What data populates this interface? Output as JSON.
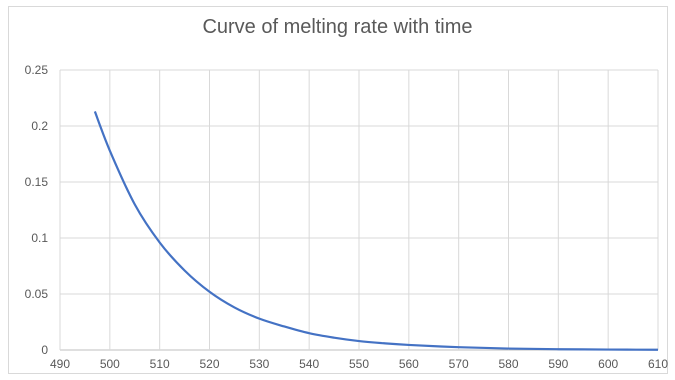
{
  "chart_data": {
    "type": "line",
    "title": "Curve of melting rate with time",
    "xlabel": "",
    "ylabel": "",
    "xlim": [
      490,
      610
    ],
    "ylim": [
      0,
      0.25
    ],
    "x_ticks": [
      490,
      500,
      510,
      520,
      530,
      540,
      550,
      560,
      570,
      580,
      590,
      600,
      610
    ],
    "y_ticks": [
      0,
      0.05,
      0.1,
      0.15,
      0.2,
      0.25
    ],
    "y_tick_labels": [
      "0",
      "0.05",
      "0.1",
      "0.15",
      "0.2",
      "0.25"
    ],
    "grid": true,
    "line_color": "#4472c4",
    "series": [
      {
        "x": [
          497,
          500,
          505,
          510,
          515,
          520,
          525,
          530,
          535,
          540,
          545,
          550,
          555,
          560,
          570,
          580,
          590,
          600,
          610
        ],
        "y": [
          0.213,
          0.178,
          0.13,
          0.096,
          0.071,
          0.052,
          0.038,
          0.028,
          0.021,
          0.015,
          0.011,
          0.008,
          0.006,
          0.0045,
          0.0025,
          0.0013,
          0.0007,
          0.0004,
          0.0002
        ]
      }
    ]
  }
}
